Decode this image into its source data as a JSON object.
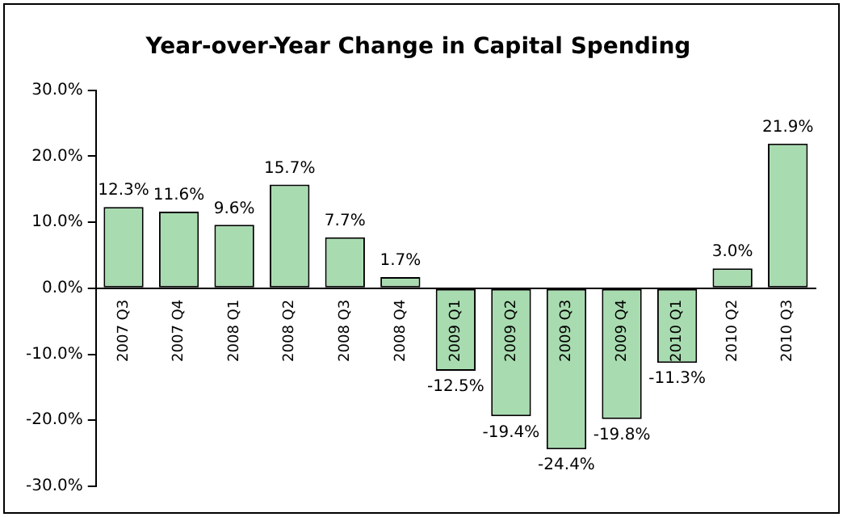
{
  "chart_data": {
    "type": "bar",
    "title": "Year-over-Year Change in Capital Spending",
    "categories": [
      "2007 Q3",
      "2007 Q4",
      "2008 Q1",
      "2008 Q2",
      "2008 Q3",
      "2008 Q4",
      "2009 Q1",
      "2009 Q2",
      "2009 Q3",
      "2009 Q4",
      "2010 Q1",
      "2010 Q2",
      "2010 Q3"
    ],
    "values": [
      12.3,
      11.6,
      9.6,
      15.7,
      7.7,
      1.7,
      -12.5,
      -19.4,
      -24.4,
      -19.8,
      -11.3,
      3.0,
      21.9
    ],
    "value_labels": [
      "12.3%",
      "11.6%",
      "9.6%",
      "15.7%",
      "7.7%",
      "1.7%",
      "-12.5%",
      "-19.4%",
      "-24.4%",
      "-19.8%",
      "-11.3%",
      "3.0%",
      "21.9%"
    ],
    "color": "#a8dcb0",
    "ylim": [
      -30,
      30
    ],
    "yticks": [
      {
        "value": -30,
        "label": "-30.0%"
      },
      {
        "value": -20,
        "label": "-20.0%"
      },
      {
        "value": -10,
        "label": "-10.0%"
      },
      {
        "value": 0,
        "label": "0.0%"
      },
      {
        "value": 10,
        "label": "10.0%"
      },
      {
        "value": 20,
        "label": "20.0%"
      },
      {
        "value": 30,
        "label": "30.0%"
      }
    ],
    "grid": false,
    "legend": false
  }
}
